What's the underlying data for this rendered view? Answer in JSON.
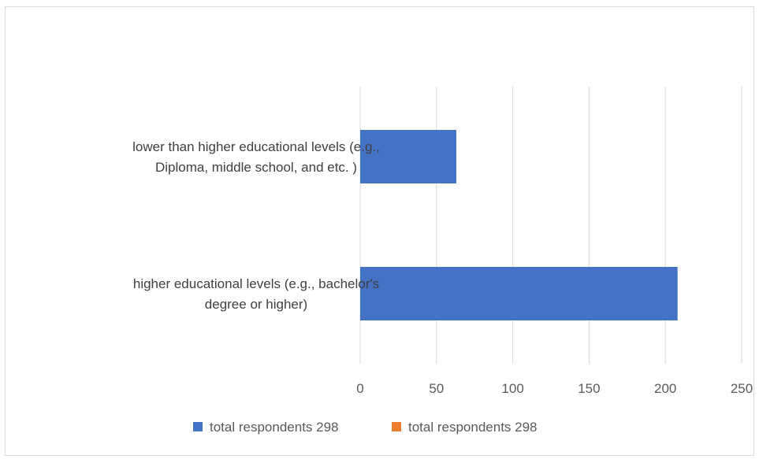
{
  "chart_data": {
    "type": "bar",
    "orientation": "horizontal",
    "categories": [
      [
        "lower than higher educational levels (e.g.,",
        "Diploma, middle school, and etc. )"
      ],
      [
        "higher educational levels (e.g., bachelor's",
        "degree or higher)"
      ]
    ],
    "series": [
      {
        "name": "total respondents  298",
        "values": [
          63,
          208
        ],
        "color": "#4472c4"
      },
      {
        "name": "total respondents  298",
        "values": [
          null,
          null
        ],
        "color": "#ed7d31"
      }
    ],
    "xlim": [
      0,
      250
    ],
    "x_ticks": [
      0,
      50,
      100,
      150,
      200,
      250
    ],
    "grid": true,
    "legend_position": "bottom"
  }
}
